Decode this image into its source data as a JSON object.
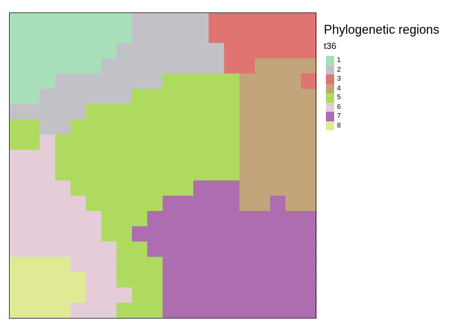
{
  "legend": {
    "title": "Phylogenetic regions",
    "subtitle": "t36",
    "items": [
      {
        "label": "1",
        "color": "#a8dfb8"
      },
      {
        "label": "2",
        "color": "#c3c1c8"
      },
      {
        "label": "3",
        "color": "#df7471"
      },
      {
        "label": "4",
        "color": "#c3a57b"
      },
      {
        "label": "5",
        "color": "#afda60"
      },
      {
        "label": "6",
        "color": "#e4cdd8"
      },
      {
        "label": "7",
        "color": "#ad6db0"
      },
      {
        "label": "8",
        "color": "#e0ea94"
      }
    ]
  },
  "map_grid": {
    "rows": 20,
    "cols": 20,
    "cells": [
      "11111111222223333333",
      "11111111222223333333",
      "11111112222222333333",
      "11111122222222334444",
      "11122222225555544443",
      "11222222555555544444",
      "22222555555555544444",
      "55225555555555544444",
      "55655555555555544444",
      "66655555555555544444",
      "66655555555555544444",
      "66665555555577744444",
      "66666555557777744744",
      "66666655577777777777",
      "66666655777777777777",
      "66666665577777777777",
      "88886665557777777777",
      "88888665557777777777",
      "88888666557777777777",
      "88886665557777777777"
    ]
  }
}
